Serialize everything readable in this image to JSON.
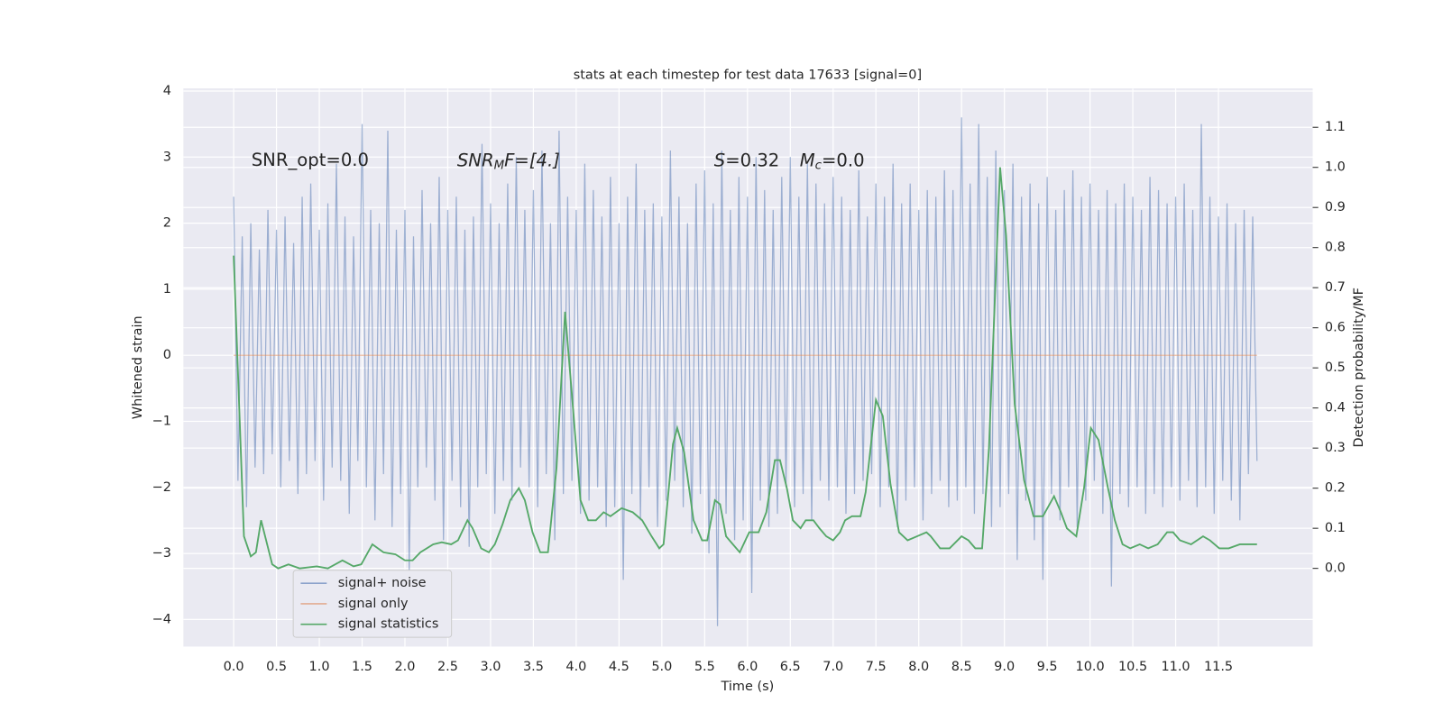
{
  "chart_data": {
    "type": "line",
    "title": "stats at each timestep for test data 17633 [signal=0]",
    "xlabel": "Time (s)",
    "ylabel": "Whitened strain",
    "y2label": "Detection probability/MF",
    "annotations": [
      [
        "SNR_opt=0.0"
      ],
      [
        "SNR",
        "M",
        "F=[4.]"
      ],
      [
        "S",
        "=0.32",
        "M",
        "c",
        "=0.0"
      ]
    ],
    "xlim": [
      -0.587,
      12.6
    ],
    "ylim": [
      -4.41,
      4.04
    ],
    "y2lim": [
      -0.195,
      1.197
    ],
    "xticks": [
      {
        "value": 0,
        "label": "0.0"
      },
      0.5,
      {
        "value": 1,
        "label": "1.0"
      },
      1.5,
      {
        "value": 2,
        "label": "2.0"
      },
      2.5,
      {
        "value": 3,
        "label": "3.0"
      },
      3.5,
      {
        "value": 4,
        "label": "4.0"
      },
      4.5,
      {
        "value": 5,
        "label": "5.0"
      },
      5.5,
      {
        "value": 6,
        "label": "6.0"
      },
      6.5,
      {
        "value": 7,
        "label": "7.0"
      },
      7.5,
      {
        "value": 8,
        "label": "8.0"
      },
      8.5,
      {
        "value": 9,
        "label": "9.0"
      },
      9.5,
      {
        "value": 10,
        "label": "10.0"
      },
      10.5,
      {
        "value": 11,
        "label": "11.0"
      },
      11.5
    ],
    "yticks": [
      {
        "value": -4,
        "label": "−4"
      },
      {
        "value": -3,
        "label": "−3"
      },
      {
        "value": -2,
        "label": "−2"
      },
      {
        "value": -1,
        "label": "−1"
      },
      0,
      1,
      2,
      3,
      4
    ],
    "y2ticks": [
      {
        "value": 0,
        "label": "0.0"
      },
      0.1,
      0.2,
      0.3,
      0.4,
      0.5,
      0.6,
      0.7,
      0.8,
      0.9,
      {
        "value": 1,
        "label": "1.0"
      },
      1.1
    ],
    "grid": true,
    "legend": "lower left",
    "series": [
      {
        "name": "signal+ noise",
        "color": "#4c72b0",
        "x": [
          0,
          0.05,
          0.1,
          0.15,
          0.2,
          0.25,
          0.3,
          0.35,
          0.4,
          0.45,
          0.5,
          0.55,
          0.6,
          0.65,
          0.7,
          0.75,
          0.8,
          0.85,
          0.9,
          0.95,
          1,
          1.05,
          1.1,
          1.15,
          1.2,
          1.25,
          1.3,
          1.35,
          1.4,
          1.45,
          1.5,
          1.55,
          1.6,
          1.65,
          1.7,
          1.75,
          1.8,
          1.85,
          1.9,
          1.95,
          2,
          2.05,
          2.1,
          2.15,
          2.2,
          2.25,
          2.3,
          2.35,
          2.4,
          2.45,
          2.5,
          2.55,
          2.6,
          2.65,
          2.7,
          2.75,
          2.8,
          2.85,
          2.9,
          2.95,
          3,
          3.05,
          3.1,
          3.15,
          3.2,
          3.25,
          3.3,
          3.35,
          3.4,
          3.45,
          3.5,
          3.55,
          3.6,
          3.65,
          3.7,
          3.75,
          3.8,
          3.85,
          3.9,
          3.95,
          4,
          4.05,
          4.1,
          4.15,
          4.2,
          4.25,
          4.3,
          4.35,
          4.4,
          4.45,
          4.5,
          4.55,
          4.6,
          4.65,
          4.7,
          4.75,
          4.8,
          4.85,
          4.9,
          4.95,
          5,
          5.05,
          5.1,
          5.15,
          5.2,
          5.25,
          5.3,
          5.35,
          5.4,
          5.45,
          5.5,
          5.55,
          5.6,
          5.65,
          5.7,
          5.75,
          5.8,
          5.85,
          5.9,
          5.95,
          6,
          6.05,
          6.1,
          6.15,
          6.2,
          6.25,
          6.3,
          6.35,
          6.4,
          6.45,
          6.5,
          6.55,
          6.6,
          6.65,
          6.7,
          6.75,
          6.8,
          6.85,
          6.9,
          6.95,
          7,
          7.05,
          7.1,
          7.15,
          7.2,
          7.25,
          7.3,
          7.35,
          7.4,
          7.45,
          7.5,
          7.55,
          7.6,
          7.65,
          7.7,
          7.75,
          7.8,
          7.85,
          7.9,
          7.95,
          8,
          8.05,
          8.1,
          8.15,
          8.2,
          8.25,
          8.3,
          8.35,
          8.4,
          8.45,
          8.5,
          8.55,
          8.6,
          8.65,
          8.7,
          8.75,
          8.8,
          8.85,
          8.9,
          8.95,
          9,
          9.05,
          9.1,
          9.15,
          9.2,
          9.25,
          9.3,
          9.35,
          9.4,
          9.45,
          9.5,
          9.55,
          9.6,
          9.65,
          9.7,
          9.75,
          9.8,
          9.85,
          9.9,
          9.95,
          10,
          10.05,
          10.1,
          10.15,
          10.2,
          10.25,
          10.3,
          10.35,
          10.4,
          10.45,
          10.5,
          10.55,
          10.6,
          10.65,
          10.7,
          10.75,
          10.8,
          10.85,
          10.9,
          10.95,
          11,
          11.05,
          11.1,
          11.15,
          11.2,
          11.25,
          11.3,
          11.35,
          11.4,
          11.45,
          11.5,
          11.55,
          11.6,
          11.65,
          11.7,
          11.75,
          11.8,
          11.85,
          11.9,
          11.95
        ],
        "values": [
          2.4,
          -1.9,
          1.8,
          -2.3,
          2.0,
          -1.7,
          1.6,
          -1.8,
          2.2,
          -1.5,
          1.9,
          -2.0,
          2.1,
          -1.6,
          1.7,
          -2.1,
          2.4,
          -1.8,
          2.6,
          -1.6,
          1.9,
          -2.2,
          2.3,
          -1.7,
          2.9,
          -1.9,
          2.1,
          -2.4,
          1.8,
          -1.6,
          3.5,
          -2.0,
          2.2,
          -2.5,
          2.0,
          -1.8,
          3.4,
          -2.6,
          1.9,
          -2.1,
          2.2,
          -3.3,
          1.8,
          -2.0,
          2.5,
          -1.7,
          2.0,
          -2.2,
          2.7,
          -2.8,
          2.2,
          -1.9,
          2.4,
          -2.3,
          1.9,
          -2.9,
          2.1,
          -2.0,
          3.2,
          -1.8,
          2.3,
          -2.4,
          2.0,
          -1.9,
          2.6,
          -2.2,
          3.0,
          -1.7,
          2.2,
          -2.0,
          2.5,
          -2.3,
          3.1,
          -1.8,
          2.0,
          -2.8,
          3.4,
          -2.1,
          2.4,
          -1.9,
          2.2,
          -2.4,
          2.9,
          -2.2,
          2.5,
          -2.0,
          2.1,
          -2.6,
          2.7,
          -2.3,
          2.0,
          -3.4,
          2.4,
          -2.1,
          2.9,
          -2.5,
          2.2,
          -2.0,
          2.3,
          -2.6,
          2.1,
          -2.2,
          3.1,
          -1.9,
          2.4,
          -2.3,
          2.0,
          -2.7,
          2.6,
          -2.1,
          2.8,
          -3.0,
          2.3,
          -4.1,
          3.1,
          -2.4,
          2.2,
          -2.8,
          2.7,
          -2.5,
          2.4,
          -3.6,
          3.0,
          -2.2,
          2.5,
          -2.6,
          2.2,
          -2.4,
          2.7,
          -2.0,
          3.0,
          -2.3,
          2.4,
          -2.1,
          2.9,
          -2.5,
          2.6,
          -1.9,
          2.3,
          -2.2,
          2.7,
          -2.0,
          2.4,
          -2.4,
          2.2,
          -2.1,
          2.8,
          -1.9,
          2.1,
          -1.8,
          2.6,
          -2.3,
          2.4,
          -2.0,
          2.9,
          -2.6,
          2.3,
          -2.2,
          2.6,
          -2.0,
          2.2,
          -2.5,
          2.5,
          -2.1,
          2.4,
          -1.9,
          2.8,
          -2.3,
          2.5,
          -2.2,
          3.6,
          -2.0,
          2.6,
          -2.4,
          3.5,
          -2.1,
          2.7,
          -2.6,
          3.1,
          -2.3,
          2.5,
          -2.1,
          2.9,
          -3.1,
          2.4,
          -2.2,
          2.6,
          -2.8,
          2.3,
          -3.4,
          2.7,
          -2.1,
          2.2,
          -2.5,
          2.5,
          -2.0,
          2.8,
          -2.6,
          2.4,
          -2.2,
          2.6,
          -1.9,
          2.2,
          -2.4,
          2.5,
          -3.5,
          2.3,
          -2.1,
          2.6,
          -2.3,
          2.4,
          -2.0,
          2.2,
          -2.4,
          2.7,
          -2.1,
          2.5,
          -2.3,
          2.3,
          -2.0,
          2.4,
          -2.2,
          2.6,
          -1.9,
          2.2,
          -2.3,
          3.5,
          -2.0,
          2.4,
          -2.4,
          2.1,
          -1.9,
          2.3,
          -2.2,
          2.0,
          -2.5,
          2.2,
          -1.8,
          2.1,
          -1.6
        ]
      },
      {
        "name": "signal only",
        "color": "#dd8452",
        "x": [
          0,
          11.95
        ],
        "values": [
          0,
          0
        ]
      },
      {
        "name": "signal statistics",
        "color": "#55a868",
        "axis": "y2",
        "x": [
          0,
          0.12,
          0.2,
          0.26,
          0.32,
          0.45,
          0.52,
          0.64,
          0.77,
          0.97,
          1.1,
          1.27,
          1.4,
          1.49,
          1.62,
          1.75,
          1.89,
          2.0,
          2.09,
          2.18,
          2.33,
          2.43,
          2.54,
          2.62,
          2.73,
          2.79,
          2.89,
          2.98,
          3.05,
          3.14,
          3.23,
          3.33,
          3.4,
          3.49,
          3.58,
          3.67,
          3.77,
          3.87,
          3.97,
          4.05,
          4.14,
          4.23,
          4.32,
          4.4,
          4.53,
          4.66,
          4.77,
          4.88,
          4.97,
          5.02,
          5.13,
          5.18,
          5.26,
          5.37,
          5.47,
          5.53,
          5.62,
          5.68,
          5.75,
          5.83,
          5.91,
          6.02,
          6.13,
          6.22,
          6.32,
          6.38,
          6.46,
          6.53,
          6.62,
          6.68,
          6.77,
          6.84,
          6.92,
          7.0,
          7.08,
          7.14,
          7.22,
          7.32,
          7.38,
          7.5,
          7.58,
          7.67,
          7.77,
          7.87,
          7.98,
          8.09,
          8.14,
          8.25,
          8.36,
          8.5,
          8.58,
          8.66,
          8.74,
          8.82,
          8.95,
          9.02,
          9.12,
          9.23,
          9.34,
          9.45,
          9.58,
          9.66,
          9.73,
          9.84,
          9.93,
          10.01,
          10.1,
          10.21,
          10.29,
          10.38,
          10.47,
          10.58,
          10.68,
          10.79,
          10.9,
          10.97,
          11.05,
          11.18,
          11.32,
          11.4,
          11.51,
          11.62,
          11.75,
          11.88,
          11.95
        ],
        "values": [
          0.78,
          0.08,
          0.03,
          0.04,
          0.12,
          0.01,
          0.0,
          0.01,
          0.0,
          0.005,
          0.0,
          0.02,
          0.005,
          0.01,
          0.06,
          0.04,
          0.035,
          0.02,
          0.02,
          0.04,
          0.06,
          0.065,
          0.06,
          0.07,
          0.12,
          0.1,
          0.05,
          0.04,
          0.06,
          0.11,
          0.17,
          0.2,
          0.17,
          0.09,
          0.04,
          0.04,
          0.25,
          0.64,
          0.38,
          0.17,
          0.12,
          0.12,
          0.14,
          0.13,
          0.15,
          0.14,
          0.12,
          0.08,
          0.05,
          0.06,
          0.31,
          0.35,
          0.29,
          0.12,
          0.07,
          0.07,
          0.17,
          0.16,
          0.08,
          0.06,
          0.04,
          0.09,
          0.09,
          0.14,
          0.27,
          0.27,
          0.2,
          0.12,
          0.1,
          0.12,
          0.12,
          0.1,
          0.08,
          0.07,
          0.09,
          0.12,
          0.13,
          0.13,
          0.19,
          0.42,
          0.38,
          0.21,
          0.09,
          0.07,
          0.08,
          0.09,
          0.08,
          0.05,
          0.05,
          0.08,
          0.07,
          0.05,
          0.05,
          0.3,
          1.0,
          0.83,
          0.41,
          0.22,
          0.13,
          0.13,
          0.18,
          0.14,
          0.1,
          0.08,
          0.2,
          0.35,
          0.32,
          0.2,
          0.12,
          0.06,
          0.05,
          0.06,
          0.05,
          0.06,
          0.09,
          0.09,
          0.07,
          0.06,
          0.08,
          0.07,
          0.05,
          0.05,
          0.06,
          0.06,
          0.06
        ]
      }
    ]
  }
}
